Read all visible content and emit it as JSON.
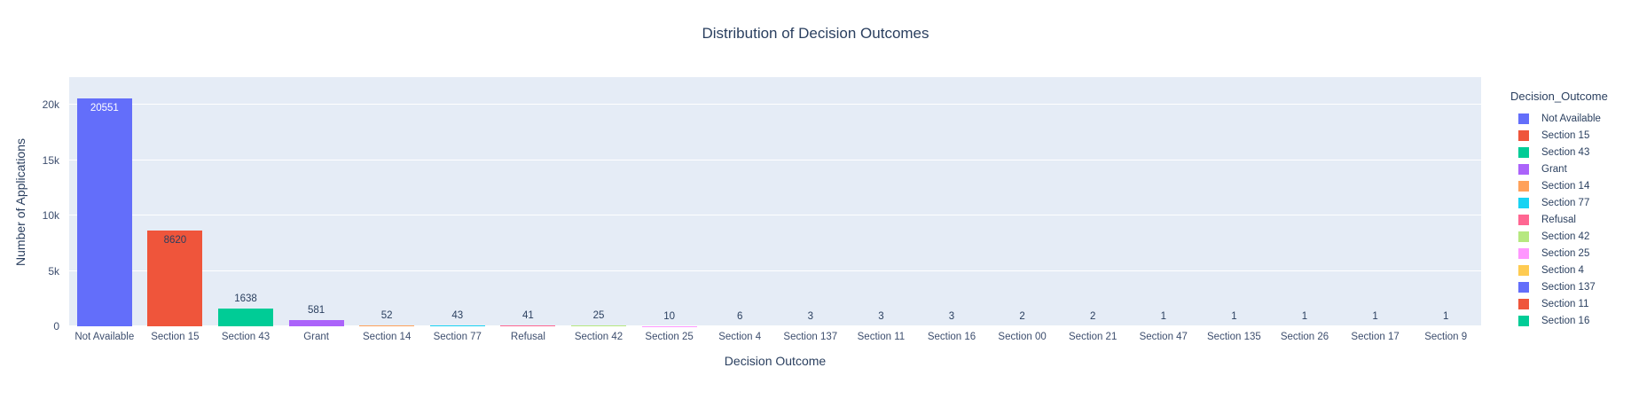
{
  "chart_data": {
    "type": "bar",
    "title": "Distribution of Decision Outcomes",
    "xlabel": "Decision Outcome",
    "ylabel": "Number of Applications",
    "ylim": [
      0,
      22480
    ],
    "grid": true,
    "legend_position": "right",
    "legend_title": "Decision_Outcome",
    "categories": [
      "Not Available",
      "Section 15",
      "Section 43",
      "Grant",
      "Section 14",
      "Section 77",
      "Refusal",
      "Section 42",
      "Section 25",
      "Section 4",
      "Section 137",
      "Section 11",
      "Section 16",
      "Section 00",
      "Section 21",
      "Section 47",
      "Section 135",
      "Section 26",
      "Section 17",
      "Section 9"
    ],
    "values": [
      20551,
      8620,
      1638,
      581,
      52,
      43,
      41,
      25,
      10,
      6,
      3,
      3,
      3,
      2,
      2,
      1,
      1,
      1,
      1,
      1
    ],
    "bar_labels": [
      "20551",
      "8620",
      "1638",
      "581",
      "52",
      "43",
      "41",
      "25",
      "10",
      "6",
      "3",
      "3",
      "3",
      "2",
      "2",
      "1",
      "1",
      "1",
      "1",
      "1"
    ],
    "bar_colors": [
      "#636efa",
      "#ef553b",
      "#00cc96",
      "#ab63fa",
      "#ffa15a",
      "#19d3f3",
      "#ff6692",
      "#b6e880",
      "#ff97ff",
      "#fecb52",
      "#636efa",
      "#ef553b",
      "#00cc96",
      "#ab63fa",
      "#ffa15a",
      "#19d3f3",
      "#ff6692",
      "#b6e880",
      "#ff97ff",
      "#fecb52"
    ],
    "bar_label_positions": [
      "inside",
      "inside",
      "outside",
      "outside",
      "outside",
      "outside",
      "outside",
      "outside",
      "outside",
      "outside",
      "outside",
      "outside",
      "outside",
      "outside",
      "outside",
      "outside",
      "outside",
      "outside",
      "outside",
      "outside"
    ],
    "bar_label_colors": [
      "#ffffff",
      "#2a3f5f",
      "#2a3f5f",
      "#2a3f5f",
      "#2a3f5f",
      "#2a3f5f",
      "#2a3f5f",
      "#2a3f5f",
      "#2a3f5f",
      "#2a3f5f",
      "#2a3f5f",
      "#2a3f5f",
      "#2a3f5f",
      "#2a3f5f",
      "#2a3f5f",
      "#2a3f5f",
      "#2a3f5f",
      "#2a3f5f",
      "#2a3f5f",
      "#2a3f5f"
    ],
    "yticks": [
      {
        "value": 0,
        "label": "0"
      },
      {
        "value": 5000,
        "label": "5k"
      },
      {
        "value": 10000,
        "label": "10k"
      },
      {
        "value": 15000,
        "label": "15k"
      },
      {
        "value": 20000,
        "label": "20k"
      }
    ],
    "legend": [
      {
        "label": "Not Available",
        "color": "#636efa"
      },
      {
        "label": "Section 15",
        "color": "#ef553b"
      },
      {
        "label": "Section 43",
        "color": "#00cc96"
      },
      {
        "label": "Grant",
        "color": "#ab63fa"
      },
      {
        "label": "Section 14",
        "color": "#ffa15a"
      },
      {
        "label": "Section 77",
        "color": "#19d3f3"
      },
      {
        "label": "Refusal",
        "color": "#ff6692"
      },
      {
        "label": "Section 42",
        "color": "#b6e880"
      },
      {
        "label": "Section 25",
        "color": "#ff97ff"
      },
      {
        "label": "Section 4",
        "color": "#fecb52"
      },
      {
        "label": "Section 137",
        "color": "#636efa"
      },
      {
        "label": "Section 11",
        "color": "#ef553b"
      },
      {
        "label": "Section 16",
        "color": "#00cc96"
      }
    ],
    "colors": {
      "plot_bg": "#e5ecf6",
      "gridline": "#ffffff",
      "title_text": "#2a3f5f",
      "tick_text": "#3d4e6e"
    }
  }
}
